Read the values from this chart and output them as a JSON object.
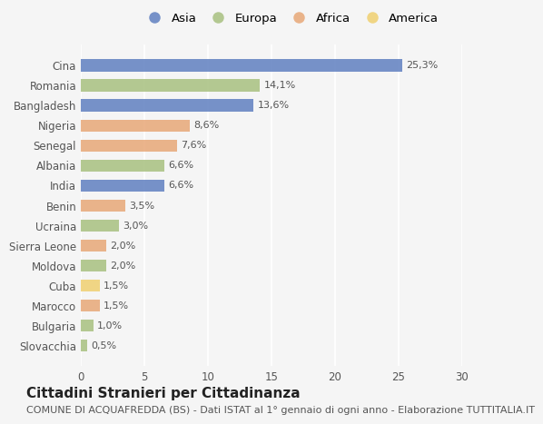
{
  "countries": [
    "Cina",
    "Romania",
    "Bangladesh",
    "Nigeria",
    "Senegal",
    "Albania",
    "India",
    "Benin",
    "Ucraina",
    "Sierra Leone",
    "Moldova",
    "Cuba",
    "Marocco",
    "Bulgaria",
    "Slovacchia"
  ],
  "values": [
    25.3,
    14.1,
    13.6,
    8.6,
    7.6,
    6.6,
    6.6,
    3.5,
    3.0,
    2.0,
    2.0,
    1.5,
    1.5,
    1.0,
    0.5
  ],
  "continents": [
    "Asia",
    "Europa",
    "Asia",
    "Africa",
    "Africa",
    "Europa",
    "Asia",
    "Africa",
    "Europa",
    "Africa",
    "Europa",
    "America",
    "Africa",
    "Europa",
    "Europa"
  ],
  "labels": [
    "25,3%",
    "14,1%",
    "13,6%",
    "8,6%",
    "7,6%",
    "6,6%",
    "6,6%",
    "3,5%",
    "3,0%",
    "2,0%",
    "2,0%",
    "1,5%",
    "1,5%",
    "1,0%",
    "0,5%"
  ],
  "continent_colors": {
    "Asia": "#6080c0",
    "Europa": "#a8c080",
    "Africa": "#e8a878",
    "America": "#f0d070"
  },
  "legend_order": [
    "Asia",
    "Europa",
    "Africa",
    "America"
  ],
  "title": "Cittadini Stranieri per Cittadinanza",
  "subtitle": "COMUNE DI ACQUAFREDDA (BS) - Dati ISTAT al 1° gennaio di ogni anno - Elaborazione TUTTITALIA.IT",
  "xlim": [
    0,
    30
  ],
  "xticks": [
    0,
    5,
    10,
    15,
    20,
    25,
    30
  ],
  "background_color": "#f5f5f5",
  "grid_color": "#ffffff",
  "title_fontsize": 11,
  "subtitle_fontsize": 8,
  "label_fontsize": 8,
  "tick_fontsize": 8.5,
  "legend_fontsize": 9.5
}
